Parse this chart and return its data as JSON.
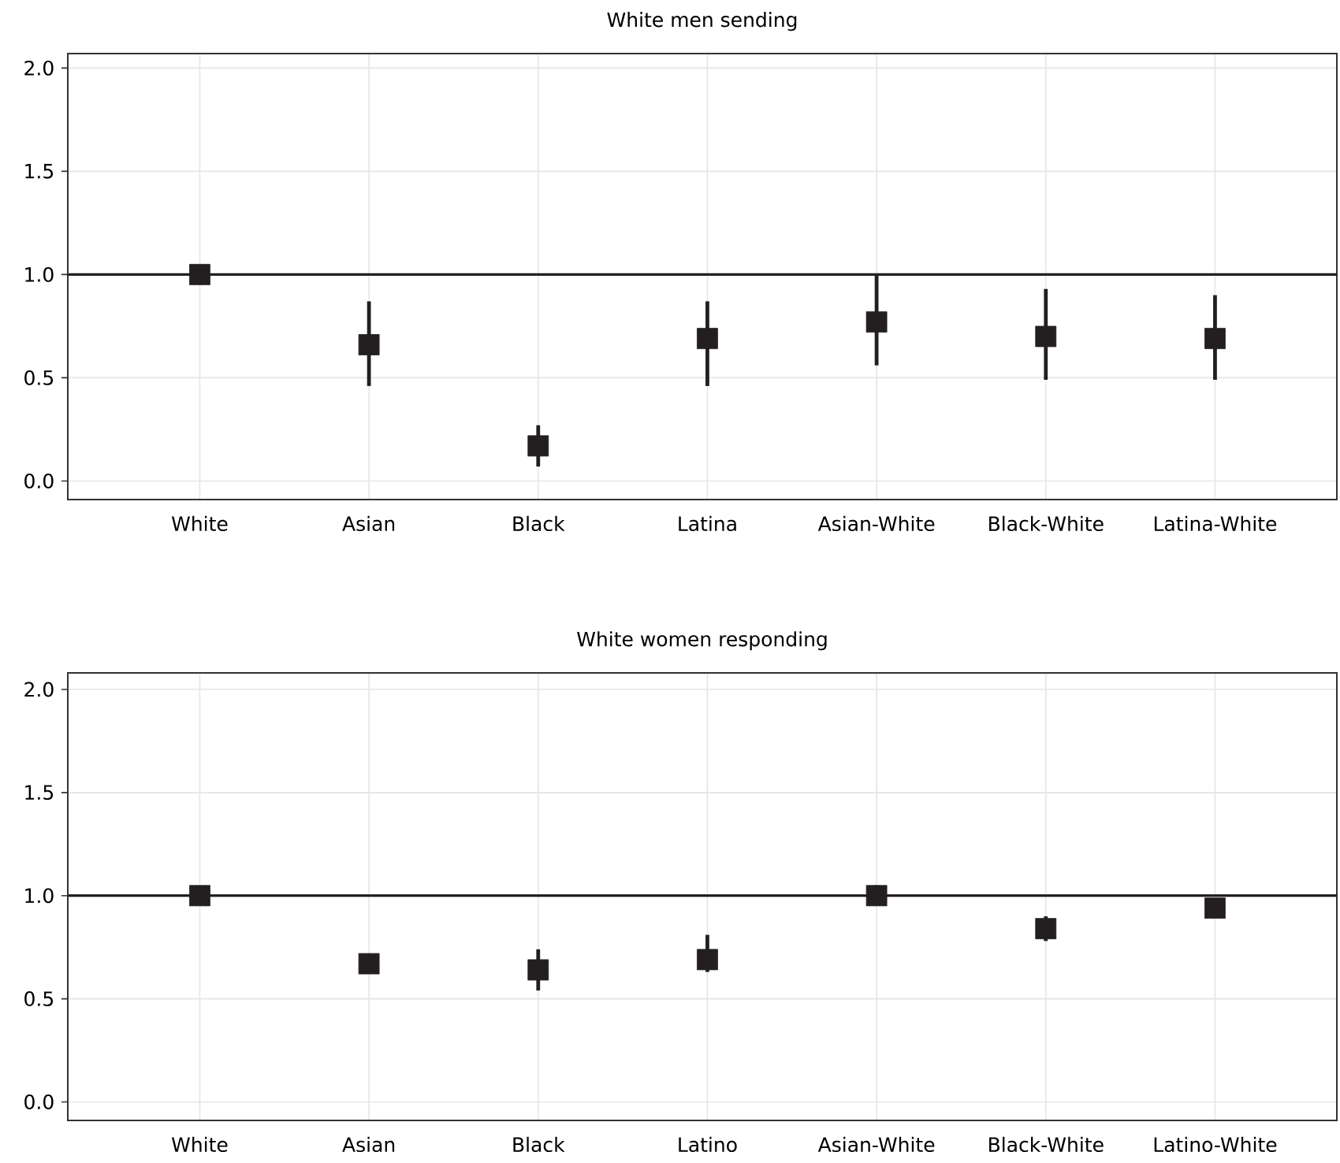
{
  "chart_data": [
    {
      "type": "scatter",
      "title": "White men sending",
      "categories": [
        "White",
        "Asian",
        "Black",
        "Latina",
        "Asian-White",
        "Black-White",
        "Latina-White"
      ],
      "values": [
        1.0,
        0.66,
        0.17,
        0.69,
        0.77,
        0.7,
        0.69
      ],
      "errors": [
        null,
        [
          0.46,
          0.87
        ],
        [
          0.07,
          0.27
        ],
        [
          0.46,
          0.87
        ],
        [
          0.56,
          1.0
        ],
        [
          0.49,
          0.93
        ],
        [
          0.49,
          0.9
        ]
      ],
      "color": "#231f20",
      "marker": "square",
      "ylim": [
        -0.09,
        2.07
      ],
      "yticks": [
        {
          "value": 0,
          "label": "0.0"
        },
        {
          "value": 0.5,
          "label": "0.5"
        },
        {
          "value": 1,
          "label": "1.0"
        },
        {
          "value": 1.5,
          "label": "1.5"
        },
        {
          "value": 2,
          "label": "2.0"
        }
      ],
      "ref_lines": [
        {
          "axis": "y",
          "value": 1.0,
          "color": "#231f20"
        }
      ],
      "grid": true
    },
    {
      "type": "scatter",
      "title": "White women responding",
      "categories": [
        "White",
        "Asian",
        "Black",
        "Latino",
        "Asian-White",
        "Black-White",
        "Latino-White"
      ],
      "values": [
        1.0,
        0.67,
        0.64,
        0.69,
        1.0,
        0.84,
        0.94
      ],
      "errors": [
        null,
        null,
        [
          0.54,
          0.74
        ],
        [
          0.63,
          0.81
        ],
        [
          0.97,
          1.05
        ],
        [
          0.78,
          0.9
        ],
        null
      ],
      "color": "#231f20",
      "marker": "square",
      "ylim": [
        -0.09,
        2.08
      ],
      "yticks": [
        {
          "value": 0,
          "label": "0.0"
        },
        {
          "value": 0.5,
          "label": "0.5"
        },
        {
          "value": 1,
          "label": "1.0"
        },
        {
          "value": 1.5,
          "label": "1.5"
        },
        {
          "value": 2,
          "label": "2.0"
        }
      ],
      "ref_lines": [
        {
          "axis": "y",
          "value": 1.0,
          "color": "#231f20"
        }
      ],
      "grid": true
    }
  ]
}
